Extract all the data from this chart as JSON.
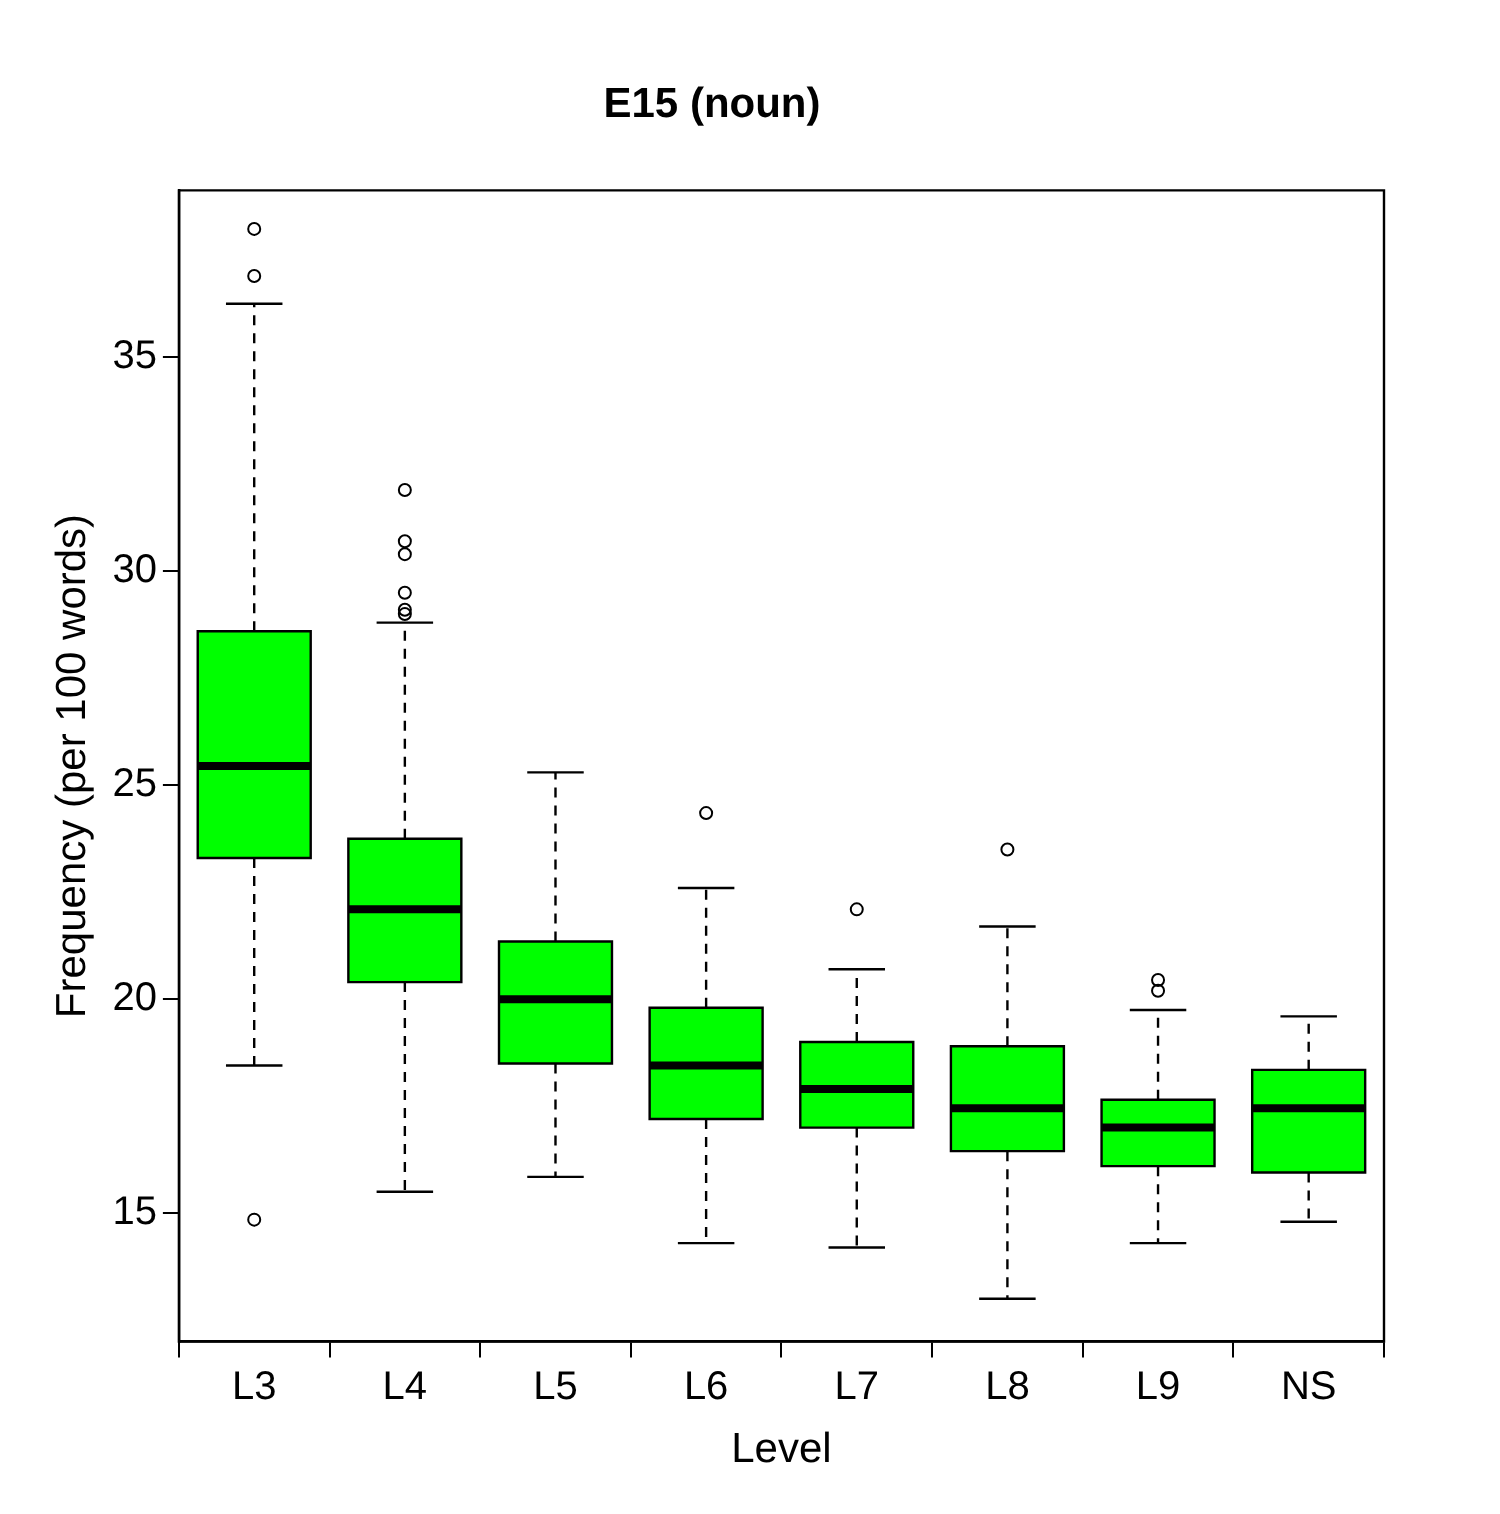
{
  "chart_data": {
    "type": "box",
    "title": "E15 (noun)",
    "xlabel": "Level",
    "ylabel": "Frequency (per 100 words)",
    "categories": [
      "L3",
      "L4",
      "L5",
      "L6",
      "L7",
      "L8",
      "L9",
      "NS"
    ],
    "color": "#00ff00",
    "boxes": [
      {
        "low": 18.45,
        "q1": 23.3,
        "median": 25.45,
        "q3": 28.6,
        "high": 36.25,
        "outliers": [
          38.0,
          36.9,
          14.85
        ]
      },
      {
        "low": 15.5,
        "q1": 20.4,
        "median": 22.1,
        "q3": 23.75,
        "high": 28.8,
        "outliers": [
          31.9,
          30.7,
          30.4,
          29.5,
          29.1,
          29.0
        ]
      },
      {
        "low": 15.85,
        "q1": 18.5,
        "median": 20.0,
        "q3": 21.35,
        "high": 25.3
      },
      {
        "low": 14.3,
        "q1": 17.2,
        "median": 18.45,
        "q3": 19.8,
        "high": 22.6,
        "outliers": [
          24.35
        ]
      },
      {
        "low": 14.2,
        "q1": 17.0,
        "median": 17.9,
        "q3": 19.0,
        "high": 20.7,
        "outliers": [
          22.1
        ]
      },
      {
        "low": 13.0,
        "q1": 16.45,
        "median": 17.45,
        "q3": 18.9,
        "high": 21.7,
        "outliers": [
          23.5
        ]
      },
      {
        "low": 14.3,
        "q1": 16.1,
        "median": 17.0,
        "q3": 17.65,
        "high": 19.75,
        "outliers": [
          20.45,
          20.2
        ]
      },
      {
        "low": 14.8,
        "q1": 15.95,
        "median": 17.45,
        "q3": 18.35,
        "high": 19.6
      }
    ],
    "ylim": [
      12.0,
      38.9
    ],
    "yticks": [
      15,
      20,
      25,
      30,
      35
    ]
  }
}
